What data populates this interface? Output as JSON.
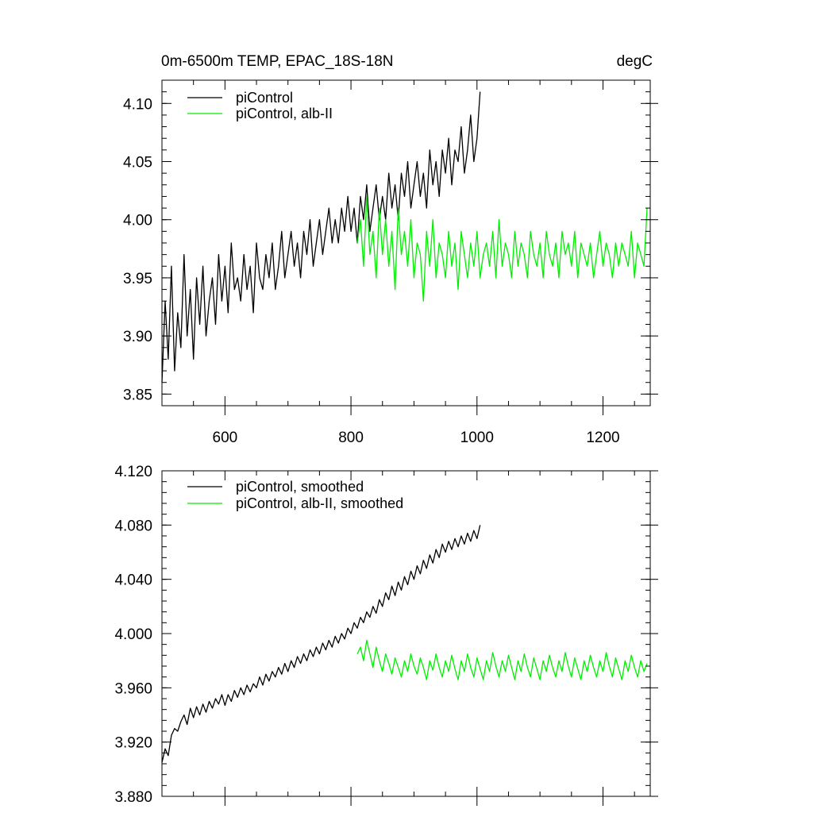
{
  "colors": {
    "control": "#000000",
    "albII": "#00ee00"
  },
  "chart_data": [
    {
      "type": "line",
      "title": "0m-6500m TEMP, EPAC_18S-18N",
      "units": "degC",
      "xlabel": "",
      "ylabel": "",
      "xlim": [
        500,
        1275
      ],
      "ylim": [
        3.84,
        4.12
      ],
      "xticks": [
        600,
        800,
        1000,
        1200
      ],
      "xtick_labels": [
        "600",
        "800",
        "1000",
        "1200"
      ],
      "yticks": [
        3.85,
        3.9,
        3.95,
        4.0,
        4.05,
        4.1
      ],
      "ytick_labels": [
        "3.85",
        "3.90",
        "3.95",
        "4.00",
        "4.05",
        "4.10"
      ],
      "legend_location": "top-left",
      "series": [
        {
          "name": "piControl",
          "color": "#000000",
          "x_start": 500,
          "x_step": 5,
          "values": [
            3.86,
            3.93,
            3.88,
            3.96,
            3.87,
            3.92,
            3.89,
            3.97,
            3.9,
            3.94,
            3.88,
            3.95,
            3.91,
            3.96,
            3.9,
            3.93,
            3.95,
            3.91,
            3.97,
            3.93,
            3.96,
            3.92,
            3.98,
            3.94,
            3.95,
            3.93,
            3.97,
            3.94,
            3.96,
            3.92,
            3.98,
            3.95,
            3.94,
            3.97,
            3.95,
            3.98,
            3.94,
            3.96,
            3.99,
            3.95,
            3.97,
            3.99,
            3.96,
            3.98,
            3.95,
            3.99,
            3.97,
            4.0,
            3.96,
            3.98,
            4.0,
            3.97,
            3.99,
            4.01,
            3.98,
            4.0,
            3.98,
            4.01,
            3.99,
            4.02,
            3.99,
            4.01,
            3.98,
            4.02,
            4.0,
            4.03,
            3.99,
            4.01,
            4.03,
            4.0,
            4.02,
            4.0,
            4.04,
            4.01,
            4.03,
            4.0,
            4.04,
            4.02,
            4.05,
            4.01,
            4.03,
            4.05,
            4.02,
            4.04,
            4.01,
            4.06,
            4.03,
            4.05,
            4.02,
            4.06,
            4.04,
            4.07,
            4.03,
            4.06,
            4.05,
            4.08,
            4.04,
            4.06,
            4.09,
            4.05,
            4.07,
            4.11
          ]
        },
        {
          "name": "piControl, alb-II",
          "color": "#00ee00",
          "x_start": 810,
          "x_step": 5,
          "values": [
            3.98,
            4.0,
            3.96,
            4.02,
            3.97,
            3.99,
            3.95,
            4.01,
            3.97,
            4.0,
            3.96,
            3.99,
            3.94,
            4.01,
            3.97,
            3.99,
            3.96,
            4.0,
            3.95,
            3.98,
            3.97,
            3.93,
            3.99,
            3.96,
            4.0,
            3.95,
            3.98,
            3.97,
            3.95,
            3.99,
            3.96,
            3.98,
            3.94,
            3.99,
            3.97,
            3.95,
            3.98,
            3.96,
            3.99,
            3.95,
            3.97,
            3.98,
            3.96,
            3.99,
            3.95,
            4.0,
            3.96,
            3.98,
            3.97,
            3.95,
            3.99,
            3.96,
            3.98,
            3.97,
            3.95,
            3.99,
            3.97,
            3.96,
            3.98,
            3.95,
            3.99,
            3.97,
            3.96,
            3.98,
            3.95,
            3.99,
            3.97,
            3.98,
            3.96,
            3.99,
            3.95,
            3.98,
            3.97,
            3.96,
            3.98,
            3.95,
            3.97,
            3.99,
            3.96,
            3.98,
            3.97,
            3.95,
            3.98,
            3.96,
            3.98,
            3.97,
            3.96,
            3.99,
            3.95,
            3.98,
            3.97,
            3.96,
            4.01
          ]
        }
      ]
    },
    {
      "type": "line",
      "title": "",
      "units": "",
      "xlabel": "",
      "ylabel": "",
      "xlim": [
        500,
        1275
      ],
      "ylim": [
        3.88,
        4.12
      ],
      "xticks": [
        600,
        800,
        1000,
        1200
      ],
      "xtick_labels": [],
      "yticks": [
        3.88,
        3.92,
        3.96,
        4.0,
        4.04,
        4.08,
        4.12
      ],
      "ytick_labels": [
        "3.880",
        "3.920",
        "3.960",
        "4.000",
        "4.040",
        "4.080",
        "4.120"
      ],
      "legend_location": "top-left",
      "series": [
        {
          "name": "piControl, smoothed",
          "color": "#000000",
          "x_start": 500,
          "x_step": 5,
          "values": [
            3.905,
            3.915,
            3.91,
            3.925,
            3.93,
            3.928,
            3.935,
            3.94,
            3.933,
            3.945,
            3.938,
            3.946,
            3.94,
            3.948,
            3.942,
            3.95,
            3.945,
            3.952,
            3.948,
            3.955,
            3.947,
            3.955,
            3.95,
            3.958,
            3.953,
            3.96,
            3.955,
            3.962,
            3.957,
            3.963,
            3.96,
            3.968,
            3.962,
            3.97,
            3.965,
            3.972,
            3.968,
            3.975,
            3.97,
            3.978,
            3.972,
            3.98,
            3.975,
            3.983,
            3.978,
            3.985,
            3.98,
            3.988,
            3.983,
            3.99,
            3.985,
            3.993,
            3.988,
            3.995,
            3.99,
            3.998,
            3.993,
            4.0,
            3.996,
            4.004,
            4.0,
            4.008,
            4.004,
            4.012,
            4.008,
            4.016,
            4.012,
            4.02,
            4.015,
            4.025,
            4.02,
            4.03,
            4.025,
            4.035,
            4.028,
            4.038,
            4.032,
            4.042,
            4.036,
            4.046,
            4.04,
            4.05,
            4.044,
            4.054,
            4.048,
            4.058,
            4.052,
            4.062,
            4.056,
            4.066,
            4.06,
            4.068,
            4.062,
            4.07,
            4.064,
            4.072,
            4.066,
            4.074,
            4.068,
            4.076,
            4.07,
            4.08
          ]
        },
        {
          "name": "piControl, alb-II, smoothed",
          "color": "#00ee00",
          "x_start": 810,
          "x_step": 5,
          "values": [
            3.985,
            3.99,
            3.98,
            3.995,
            3.985,
            3.975,
            3.99,
            3.98,
            3.972,
            3.985,
            3.978,
            3.97,
            3.982,
            3.975,
            3.968,
            3.98,
            3.972,
            3.985,
            3.976,
            3.97,
            3.982,
            3.975,
            3.966,
            3.98,
            3.973,
            3.985,
            3.975,
            3.968,
            3.98,
            3.972,
            3.984,
            3.974,
            3.966,
            3.98,
            3.972,
            3.985,
            3.975,
            3.968,
            3.982,
            3.974,
            3.966,
            3.98,
            3.972,
            3.986,
            3.976,
            3.968,
            3.98,
            3.972,
            3.984,
            3.975,
            3.966,
            3.98,
            3.972,
            3.985,
            3.975,
            3.968,
            3.982,
            3.974,
            3.966,
            3.98,
            3.972,
            3.984,
            3.975,
            3.968,
            3.98,
            3.972,
            3.986,
            3.976,
            3.968,
            3.982,
            3.974,
            3.966,
            3.98,
            3.972,
            3.984,
            3.975,
            3.968,
            3.98,
            3.972,
            3.986,
            3.976,
            3.968,
            3.982,
            3.974,
            3.966,
            3.98,
            3.972,
            3.984,
            3.975,
            3.968,
            3.98,
            3.972,
            3.978
          ]
        }
      ]
    }
  ]
}
